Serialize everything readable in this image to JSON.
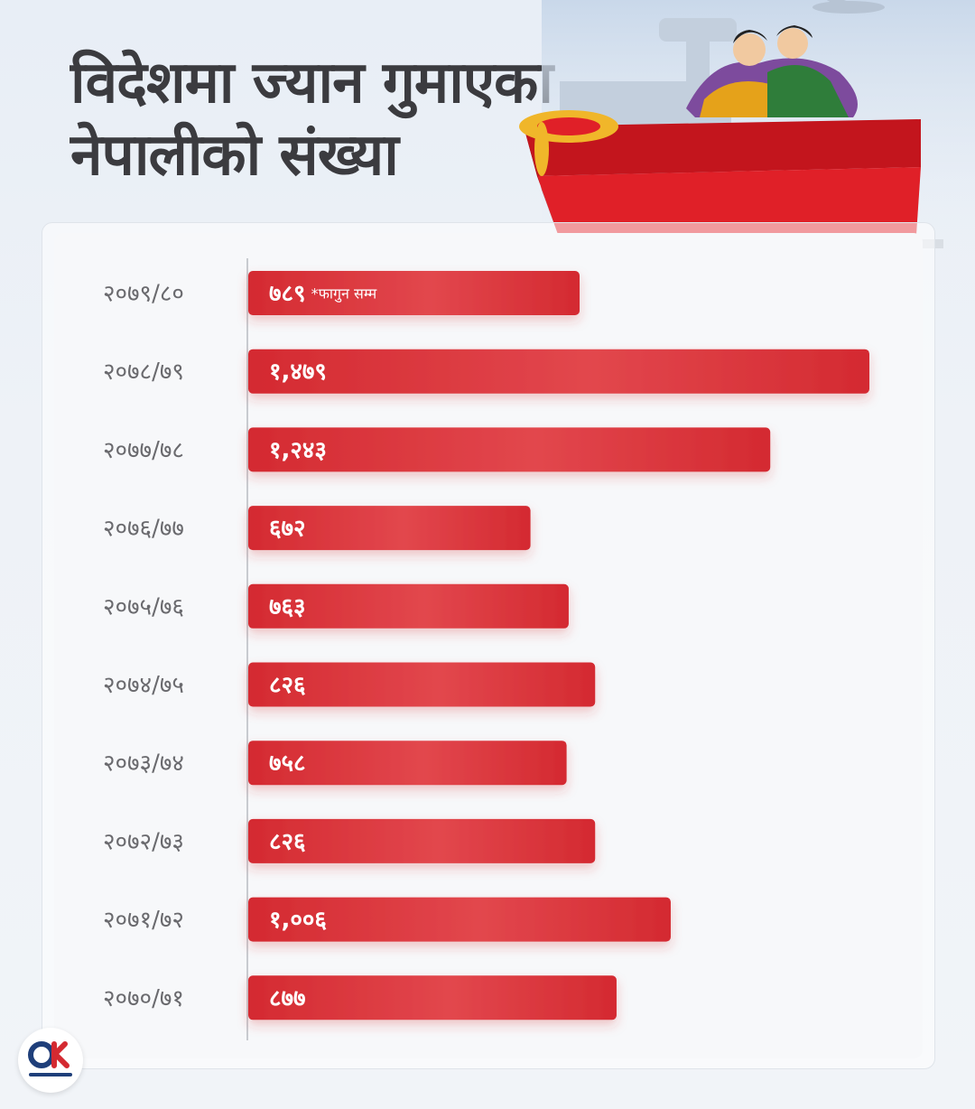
{
  "title": {
    "line1": "विदेशमा ज्यान गुमाएका",
    "line2": "नेपालीको संख्या"
  },
  "brand": {
    "logo_text": "onlinekhabar",
    "logo_mark": "OK"
  },
  "colors": {
    "bar": "#d42a31",
    "bar_highlight": "#e2474d",
    "label": "#6a6a6e",
    "value": "#ffffff",
    "title": "#3b3b3f"
  },
  "chart_data": {
    "type": "bar",
    "orientation": "horizontal",
    "title": "विदेशमा ज्यान गुमाएका नेपालीको संख्या",
    "categories": [
      "२०७९/८०",
      "२०७८/७९",
      "२०७७/७८",
      "२०७६/७७",
      "२०७५/७६",
      "२०७४/७५",
      "२०७३/७४",
      "२०७२/७३",
      "२०७१/७२",
      "२०७०/७१"
    ],
    "values": [
      789,
      1479,
      1243,
      672,
      763,
      826,
      758,
      826,
      1006,
      877
    ],
    "value_labels": [
      "७८९",
      "१,४७९",
      "१,२४३",
      "६७२",
      "७६३",
      "८२६",
      "७५८",
      "८२६",
      "१,००६",
      "८७७"
    ],
    "annotations": [
      {
        "category": "२०७९/८०",
        "text": "*फागुन सम्म"
      }
    ],
    "grid": false,
    "legend": "none"
  }
}
